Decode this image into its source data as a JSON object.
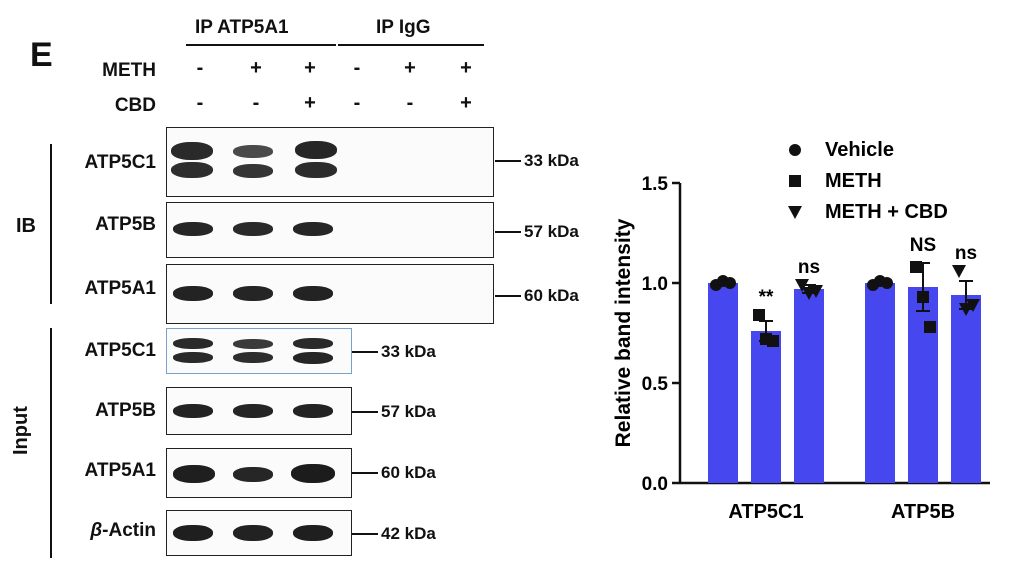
{
  "panel": "E",
  "ip_headers": [
    {
      "label": "IP ATP5A1"
    },
    {
      "label": "IP IgG"
    }
  ],
  "treatments": [
    {
      "label": "METH",
      "signs": [
        "-",
        "+",
        "+",
        "-",
        "+",
        "+"
      ]
    },
    {
      "label": "CBD",
      "signs": [
        "-",
        "-",
        "+",
        "-",
        "-",
        "+"
      ]
    }
  ],
  "ib_section": {
    "group_label": "IB",
    "rows": [
      {
        "label": "ATP5C1",
        "kda": "33 kDa"
      },
      {
        "label": "ATP5B",
        "kda": "57 kDa"
      },
      {
        "label": "ATP5A1",
        "kda": "60 kDa"
      }
    ]
  },
  "input_section": {
    "group_label": "Input",
    "rows": [
      {
        "label": "ATP5C1",
        "kda": "33 kDa"
      },
      {
        "label": "ATP5B",
        "kda": "57 kDa"
      },
      {
        "label": "ATP5A1",
        "kda": "60 kDa"
      },
      {
        "label_greek": "β",
        "label_rest": "-Actin",
        "kda": "42 kDa"
      }
    ]
  },
  "chart_data": {
    "type": "bar",
    "categories": [
      "ATP5C1",
      "ATP5B"
    ],
    "ylabel": "Relative band intensity",
    "ylim": [
      0,
      1.5
    ],
    "yticks": [
      "0.0",
      "0.5",
      "1.0",
      "1.5"
    ],
    "legend_position": "top-right",
    "bar_color": "#4747f0",
    "series": [
      {
        "name": "Vehicle",
        "marker": "circle",
        "values": [
          1.0,
          1.0
        ],
        "errors": [
          0.0,
          0.0
        ],
        "points": [
          [
            0.99,
            1.01,
            1.0
          ],
          [
            0.99,
            1.01,
            1.0
          ]
        ],
        "annotations": [
          "",
          ""
        ]
      },
      {
        "name": "METH",
        "marker": "square",
        "values": [
          0.76,
          0.98
        ],
        "errors": [
          0.05,
          0.12
        ],
        "points": [
          [
            0.84,
            0.72,
            0.71
          ],
          [
            1.08,
            0.93,
            0.78
          ]
        ],
        "annotations": [
          "**",
          "NS"
        ]
      },
      {
        "name": "METH + CBD",
        "marker": "triangle-down",
        "values": [
          0.97,
          0.94
        ],
        "errors": [
          0.02,
          0.07
        ],
        "points": [
          [
            0.99,
            0.95,
            0.96
          ],
          [
            1.06,
            0.87,
            0.89
          ]
        ],
        "annotations": [
          "ns",
          "ns"
        ]
      }
    ]
  }
}
